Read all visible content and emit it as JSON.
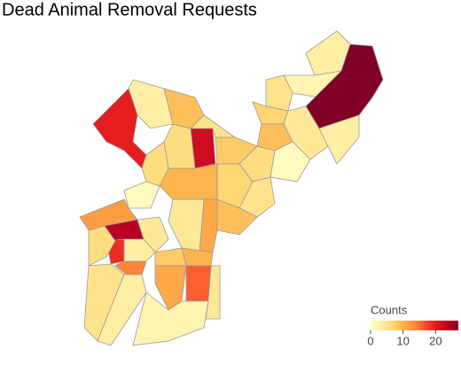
{
  "chart_data": {
    "type": "choropleth",
    "title": "Dead Animal Removal Requests",
    "values": [
      3,
      2,
      27,
      5,
      7,
      9,
      4,
      3,
      1,
      6,
      8,
      5,
      7,
      9,
      11,
      4,
      10,
      22,
      6,
      9,
      5,
      3,
      20,
      6,
      1,
      12,
      24,
      19,
      14,
      4,
      3,
      6,
      5,
      3,
      8,
      10,
      11,
      16,
      2,
      4
    ],
    "colorscale": [
      "#ffffcc",
      "#ffeda0",
      "#fed976",
      "#feb24c",
      "#fd8d3c",
      "#fc4e2a",
      "#e31a1c",
      "#bd0026",
      "#800026"
    ],
    "colorbar_title": "Counts",
    "zlim": [
      0,
      27
    ],
    "zticks": [
      0,
      10,
      20
    ]
  }
}
